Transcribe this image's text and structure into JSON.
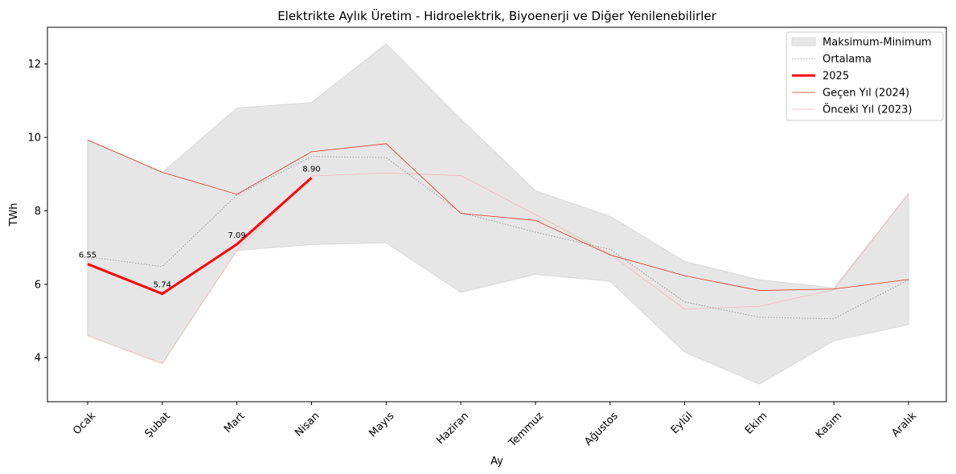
{
  "chart_data": {
    "type": "line",
    "title": "Elektrikte Aylık Üretim - Hidroelektrik, Biyoenerji ve Diğer Yenilenebilirler",
    "xlabel": "Ay",
    "ylabel": "TWh",
    "ylim": [
      2.8,
      13.0
    ],
    "yticks": [
      "4",
      "6",
      "8",
      "10",
      "12"
    ],
    "categories": [
      "Ocak",
      "Şubat",
      "Mart",
      "Nisan",
      "Mayıs",
      "Haziran",
      "Temmuz",
      "Ağustos",
      "Eylül",
      "Ekim",
      "Kasım",
      "Aralık"
    ],
    "grid": false,
    "legend_position": "top-right",
    "band": {
      "name": "Maksimum-Minimum",
      "color": "#e6e6e6",
      "max": [
        9.93,
        9.05,
        10.8,
        10.95,
        12.55,
        10.5,
        8.55,
        7.85,
        6.62,
        6.12,
        5.9,
        8.47
      ],
      "min": [
        4.6,
        3.84,
        6.92,
        7.08,
        7.13,
        5.78,
        6.27,
        6.08,
        4.15,
        3.28,
        4.46,
        4.9
      ]
    },
    "series": [
      {
        "name": "Ortalama",
        "color": "#999999",
        "style": "dotted",
        "values": [
          6.75,
          6.48,
          8.43,
          9.48,
          9.45,
          7.95,
          7.42,
          6.95,
          5.52,
          5.1,
          5.06,
          6.12
        ]
      },
      {
        "name": "2025",
        "color": "#ff0000",
        "style": "thick",
        "values": [
          6.55,
          5.74,
          7.09,
          8.9,
          null,
          null,
          null,
          null,
          null,
          null,
          null,
          null
        ],
        "labels": [
          "6.55",
          "5.74",
          "7.09",
          "8.90"
        ]
      },
      {
        "name": "Geçen Yıl (2024)",
        "color": "#e03020",
        "style": "thin",
        "values": [
          9.93,
          9.05,
          8.45,
          9.61,
          9.83,
          7.93,
          7.74,
          6.8,
          6.23,
          5.83,
          5.87,
          6.13
        ]
      },
      {
        "name": "Önceki Yıl (2023)",
        "color": "#f2b8b8",
        "style": "faint",
        "values": [
          4.6,
          3.84,
          6.92,
          8.95,
          9.03,
          8.96,
          7.9,
          6.82,
          5.32,
          5.4,
          5.85,
          8.47
        ]
      }
    ]
  }
}
